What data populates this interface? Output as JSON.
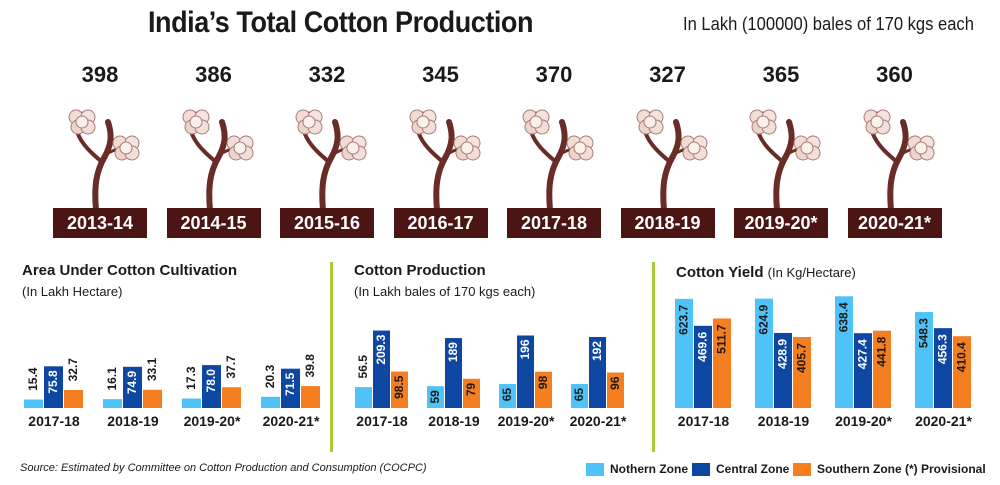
{
  "header": {
    "title": "India’s Total Cotton Production",
    "unit_note": "In Lakh (100000) bales of 170 kgs each"
  },
  "colors": {
    "northern": "#4fc3f7",
    "central": "#0d47a1",
    "southern": "#f57f20",
    "year_tag": "#4a1513",
    "stem": "#6a2c26",
    "divider": "#a6cc3a"
  },
  "production_plants": [
    {
      "year": "2013-14",
      "value": "398"
    },
    {
      "year": "2014-15",
      "value": "386"
    },
    {
      "year": "2015-16",
      "value": "332"
    },
    {
      "year": "2016-17",
      "value": "345"
    },
    {
      "year": "2017-18",
      "value": "370"
    },
    {
      "year": "2018-19",
      "value": "327"
    },
    {
      "year": "2019-20*",
      "value": "365"
    },
    {
      "year": "2020-21*",
      "value": "360"
    }
  ],
  "chart_data": [
    {
      "type": "bar",
      "title": "Area Under Cotton Cultivation",
      "subtitle": "(In Lakh Hectare)",
      "categories": [
        "2017-18",
        "2018-19",
        "2019-20*",
        "2020-21*"
      ],
      "series": [
        {
          "name": "Nothern Zone",
          "values": [
            15.4,
            16.1,
            17.3,
            20.3
          ]
        },
        {
          "name": "Central Zone",
          "values": [
            75.8,
            74.9,
            78.0,
            71.5
          ]
        },
        {
          "name": "Southern Zone",
          "values": [
            32.7,
            33.1,
            37.7,
            39.8
          ]
        }
      ],
      "labels": [
        [
          "15.4",
          "75.8",
          "32.7"
        ],
        [
          "16.1",
          "74.9",
          "33.1"
        ],
        [
          "17.3",
          "78.0",
          "37.7"
        ],
        [
          "20.3",
          "71.5",
          "39.8"
        ]
      ]
    },
    {
      "type": "bar",
      "title": "Cotton Production",
      "subtitle": "(In Lakh bales of 170 kgs each)",
      "categories": [
        "2017-18",
        "2018-19",
        "2019-20*",
        "2020-21*"
      ],
      "series": [
        {
          "name": "Nothern Zone",
          "values": [
            56.5,
            59,
            65,
            65
          ]
        },
        {
          "name": "Central Zone",
          "values": [
            209.3,
            189,
            196,
            192
          ]
        },
        {
          "name": "Southern Zone",
          "values": [
            98.5,
            79,
            98,
            96
          ]
        }
      ],
      "labels": [
        [
          "56.5",
          "209.3",
          "98.5"
        ],
        [
          "59",
          "189",
          "79"
        ],
        [
          "65",
          "196",
          "98"
        ],
        [
          "65",
          "192",
          "96"
        ]
      ]
    },
    {
      "type": "bar",
      "title": "Cotton Yield",
      "subtitle": "(In Kg/Hectare)",
      "categories": [
        "2017-18",
        "2018-19",
        "2019-20*",
        "2020-21*"
      ],
      "series": [
        {
          "name": "Nothern Zone",
          "values": [
            623.7,
            624.9,
            638.4,
            548.3
          ]
        },
        {
          "name": "Central Zone",
          "values": [
            469.6,
            428.9,
            427.4,
            456.3
          ]
        },
        {
          "name": "Southern Zone",
          "values": [
            511.7,
            405.7,
            441.8,
            410.4
          ]
        }
      ],
      "labels": [
        [
          "623.7",
          "469.6",
          "511.7"
        ],
        [
          "624.9",
          "428.9",
          "405.7"
        ],
        [
          "638.4",
          "427.4",
          "441.8"
        ],
        [
          "548.3",
          "456.3",
          "410.4"
        ]
      ]
    }
  ],
  "footer": {
    "source": "Source: Estimated by Committee on Cotton Production and Consumption (COCPC)",
    "legend": [
      "Nothern Zone",
      "Central Zone",
      "Southern Zone"
    ],
    "note": "(*) Provisional"
  }
}
